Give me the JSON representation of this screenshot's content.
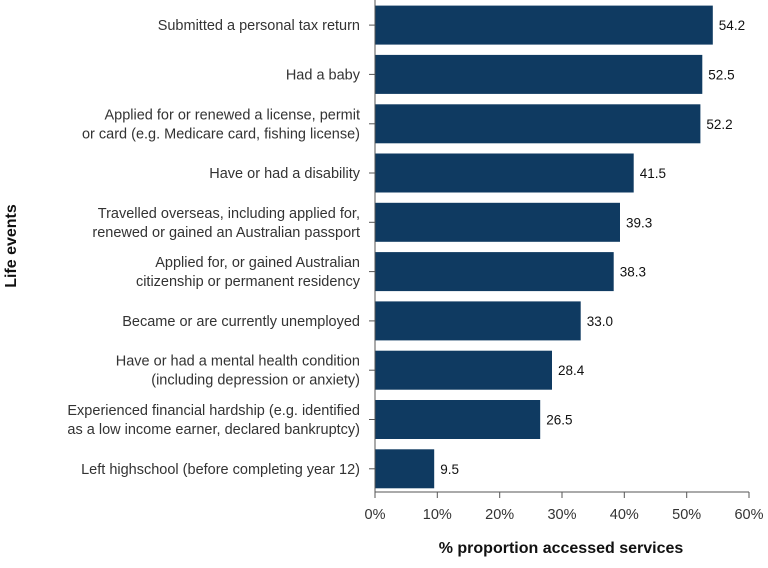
{
  "chart_data": {
    "type": "bar",
    "orientation": "horizontal",
    "categories": [
      [
        "Submitted a personal tax return"
      ],
      [
        "Had a baby"
      ],
      [
        "Applied for or renewed a license, permit",
        "or card (e.g. Medicare card, fishing license)"
      ],
      [
        "Have or had a disability"
      ],
      [
        "Travelled overseas, including applied for,",
        "renewed or gained an Australian passport"
      ],
      [
        "Applied for, or gained Australian",
        "citizenship or permanent residency"
      ],
      [
        "Became or are currently unemployed"
      ],
      [
        "Have or had a mental health condition",
        "(including depression or anxiety)"
      ],
      [
        "Experienced financial hardship (e.g. identified",
        "as a low income earner, declared bankruptcy)"
      ],
      [
        "Left highschool (before completing year 12)"
      ]
    ],
    "values": [
      54.2,
      52.5,
      52.2,
      41.5,
      39.3,
      38.3,
      33.0,
      28.4,
      26.5,
      9.5
    ],
    "value_labels": [
      "54.2",
      "52.5",
      "52.2",
      "41.5",
      "39.3",
      "38.3",
      "33.0",
      "28.4",
      "26.5",
      "9.5"
    ],
    "xlabel": "% proportion accessed services",
    "ylabel": "Life events",
    "xlim": [
      0,
      60
    ],
    "xticks": [
      "0%",
      "10%",
      "20%",
      "30%",
      "40%",
      "50%",
      "60%"
    ],
    "grid": false,
    "legend": "none",
    "bar_color": "#0f3a61",
    "axis_color": "#555555"
  }
}
